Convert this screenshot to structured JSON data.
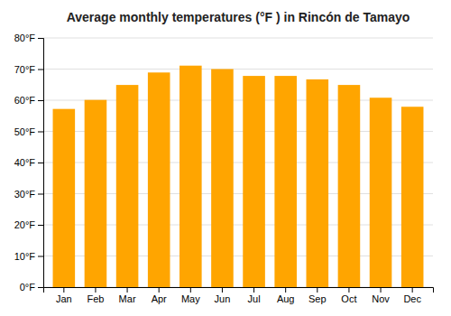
{
  "chart_data": {
    "type": "bar",
    "title": "Average monthly temperatures (°F ) in Rincón de Tamayo",
    "categories": [
      "Jan",
      "Feb",
      "Mar",
      "Apr",
      "May",
      "Jun",
      "Jul",
      "Aug",
      "Sep",
      "Oct",
      "Nov",
      "Dec"
    ],
    "values": [
      57.2,
      60.1,
      64.9,
      68.9,
      71.1,
      70.0,
      67.8,
      67.8,
      66.7,
      64.9,
      60.8,
      57.9
    ],
    "color": "#FFA500",
    "ylim": [
      0,
      80
    ],
    "yticks": [
      {
        "value": 0,
        "label": "0°F"
      },
      {
        "value": 10,
        "label": "10°F"
      },
      {
        "value": 20,
        "label": "20°F"
      },
      {
        "value": 30,
        "label": "30°F"
      },
      {
        "value": 40,
        "label": "40°F"
      },
      {
        "value": 50,
        "label": "50°F"
      },
      {
        "value": 60,
        "label": "60°F"
      },
      {
        "value": 70,
        "label": "70°F"
      },
      {
        "value": 80,
        "label": "80°F"
      }
    ],
    "grid": true
  }
}
